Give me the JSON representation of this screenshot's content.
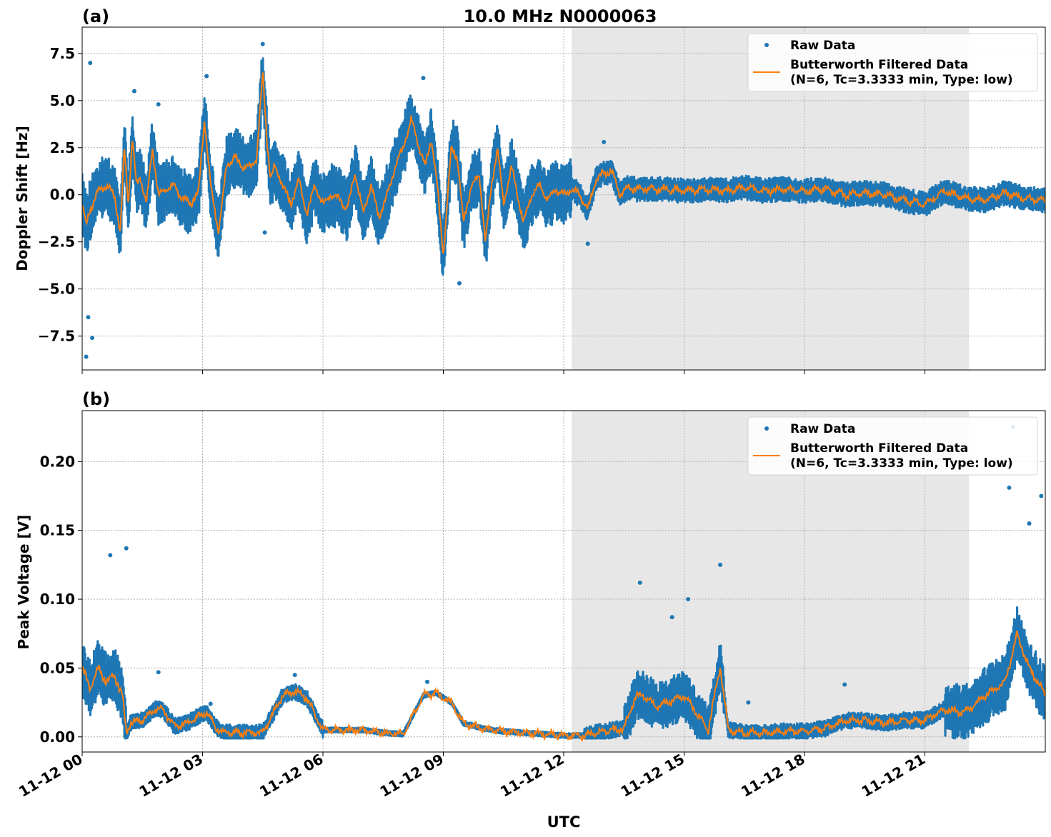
{
  "figure": {
    "title": "10.0 MHz N0000063",
    "xlabel": "UTC",
    "x_ticks": [
      "11-12 00",
      "11-12 03",
      "11-12 06",
      "11-12 09",
      "11-12 12",
      "11-12 15",
      "11-12 18",
      "11-12 21"
    ],
    "shaded_span_hours": [
      12.2,
      22.1
    ],
    "colors": {
      "raw": "#1f77b4",
      "filtered": "#ff7f0e",
      "shade": "#e7e7e7",
      "grid": "#b0b0b0"
    }
  },
  "legend": {
    "raw": "Raw Data",
    "filt_line1": "Butterworth Filtered Data",
    "filt_line2": "(N=6, Tc=3.3333 min, Type: low)"
  },
  "chart_data": [
    {
      "type": "line",
      "panel_label": "(a)",
      "ylabel": "Doppler Shift [Hz]",
      "xlim_hours": [
        0,
        24
      ],
      "ylim": [
        -9.3,
        8.9
      ],
      "y_ticks": [
        7.5,
        5.0,
        2.5,
        0.0,
        -2.5,
        -5.0,
        -7.5
      ],
      "y_tick_labels": [
        "7.5",
        "5.0",
        "2.5",
        "0.0",
        "−2.5",
        "−5.0",
        "−7.5"
      ],
      "series": [
        {
          "name": "Butterworth Filtered Data",
          "x_hours": [
            0,
            0.1,
            0.2,
            0.4,
            0.6,
            0.8,
            0.95,
            1.05,
            1.15,
            1.25,
            1.35,
            1.45,
            1.6,
            1.75,
            1.9,
            2.1,
            2.3,
            2.5,
            2.7,
            2.9,
            3.05,
            3.2,
            3.4,
            3.6,
            3.8,
            4.0,
            4.2,
            4.35,
            4.5,
            4.6,
            4.7,
            4.8,
            5.0,
            5.2,
            5.4,
            5.6,
            5.8,
            6.0,
            6.2,
            6.4,
            6.6,
            6.8,
            7.0,
            7.2,
            7.4,
            7.6,
            7.8,
            8.0,
            8.2,
            8.4,
            8.55,
            8.7,
            8.85,
            9.0,
            9.2,
            9.35,
            9.5,
            9.7,
            9.9,
            10.05,
            10.2,
            10.35,
            10.5,
            10.7,
            10.85,
            11.0,
            11.2,
            11.4,
            11.6,
            11.8,
            12.0,
            12.2,
            12.4,
            12.6,
            12.8,
            13.0,
            13.2,
            13.4,
            13.6,
            13.8,
            14.0,
            14.5,
            15.0,
            15.5,
            16.0,
            16.5,
            17.0,
            17.5,
            18.0,
            18.5,
            19.0,
            19.5,
            20.0,
            20.5,
            21.0,
            21.5,
            22.0,
            22.5,
            23.0,
            23.5,
            24.0
          ],
          "y": [
            -0.5,
            -1.6,
            -0.8,
            0.2,
            0.5,
            0.0,
            -2.0,
            2.5,
            -0.5,
            3.0,
            0.5,
            1.0,
            -0.5,
            2.5,
            0.0,
            0.3,
            0.5,
            -0.2,
            -0.5,
            0.2,
            4.0,
            0.5,
            -2.0,
            1.5,
            2.0,
            1.5,
            1.5,
            2.0,
            6.5,
            3.0,
            0.8,
            1.5,
            0.5,
            -0.5,
            0.8,
            -1.0,
            0.5,
            -0.5,
            0.0,
            -0.2,
            -0.8,
            1.2,
            -1.0,
            0.5,
            -1.2,
            0.0,
            1.5,
            2.5,
            4.0,
            2.5,
            1.5,
            3.0,
            0.5,
            -3.2,
            2.5,
            2.0,
            -1.5,
            0.5,
            1.0,
            -2.5,
            0.5,
            2.5,
            -0.5,
            1.5,
            0.0,
            -1.5,
            0.0,
            0.5,
            -0.3,
            0.3,
            0.0,
            0.3,
            0.0,
            -0.8,
            0.8,
            1.2,
            1.2,
            0.0,
            0.4,
            0.3,
            0.3,
            0.3,
            0.2,
            0.3,
            0.2,
            0.4,
            0.2,
            0.3,
            0.2,
            0.3,
            0.0,
            0.1,
            0.0,
            -0.3,
            -0.5,
            0.2,
            -0.2,
            -0.3,
            0.1,
            -0.2,
            -0.3
          ]
        },
        {
          "name": "Raw Data",
          "x_hours": [
            0.1,
            0.15,
            0.2,
            0.25,
            1.3,
            1.9,
            3.1,
            4.5,
            4.55,
            8.5,
            9.4,
            12.6,
            13.0
          ],
          "y": [
            -8.6,
            -6.5,
            7.0,
            -7.6,
            5.5,
            4.8,
            6.3,
            8.0,
            -2.0,
            6.2,
            -4.7,
            -2.6,
            2.8
          ]
        }
      ]
    },
    {
      "type": "line",
      "panel_label": "(b)",
      "ylabel": "Peak Voltage [V]",
      "xlim_hours": [
        0,
        24
      ],
      "ylim": [
        -0.011,
        0.237
      ],
      "y_ticks": [
        0.2,
        0.15,
        0.1,
        0.05,
        0.0
      ],
      "y_tick_labels": [
        "0.20",
        "0.15",
        "0.10",
        "0.05",
        "0.00"
      ],
      "series": [
        {
          "name": "Butterworth Filtered Data",
          "x_hours": [
            0,
            0.2,
            0.4,
            0.6,
            0.8,
            1.0,
            1.1,
            1.2,
            1.5,
            1.8,
            2.0,
            2.3,
            2.6,
            2.9,
            3.1,
            3.3,
            3.5,
            4.0,
            4.5,
            5.0,
            5.3,
            5.6,
            6.0,
            6.5,
            7.0,
            7.5,
            8.0,
            8.5,
            8.8,
            9.2,
            9.5,
            10.0,
            10.5,
            11.0,
            11.5,
            12.0,
            12.5,
            13.0,
            13.5,
            13.8,
            14.0,
            14.3,
            14.6,
            15.0,
            15.3,
            15.6,
            15.9,
            16.1,
            16.5,
            17.0,
            17.5,
            18.0,
            18.5,
            19.0,
            19.5,
            20.0,
            20.5,
            21.0,
            21.5,
            22.0,
            22.5,
            23.0,
            23.3,
            23.6,
            23.8,
            24.0
          ],
          "y": [
            0.05,
            0.035,
            0.05,
            0.04,
            0.045,
            0.03,
            0.003,
            0.01,
            0.012,
            0.02,
            0.02,
            0.008,
            0.01,
            0.015,
            0.018,
            0.008,
            0.003,
            0.003,
            0.003,
            0.03,
            0.033,
            0.028,
            0.005,
            0.005,
            0.005,
            0.003,
            0.002,
            0.03,
            0.032,
            0.025,
            0.01,
            0.006,
            0.004,
            0.003,
            0.002,
            0.001,
            0.001,
            0.004,
            0.006,
            0.03,
            0.03,
            0.022,
            0.025,
            0.03,
            0.018,
            0.005,
            0.052,
            0.005,
            0.003,
            0.003,
            0.004,
            0.004,
            0.006,
            0.012,
            0.012,
            0.01,
            0.012,
            0.012,
            0.02,
            0.018,
            0.03,
            0.04,
            0.075,
            0.05,
            0.04,
            0.03
          ]
        },
        {
          "name": "Raw Data",
          "x_hours": [
            0.7,
            1.1,
            1.9,
            3.2,
            5.3,
            8.6,
            12.2,
            13.9,
            14.7,
            15.1,
            15.9,
            16.6,
            19.0,
            23.1,
            23.2,
            23.6,
            23.9
          ],
          "y": [
            0.132,
            0.137,
            0.047,
            0.024,
            0.045,
            0.04,
            0.001,
            0.112,
            0.087,
            0.1,
            0.125,
            0.025,
            0.038,
            0.181,
            0.225,
            0.155,
            0.175
          ]
        }
      ]
    }
  ]
}
